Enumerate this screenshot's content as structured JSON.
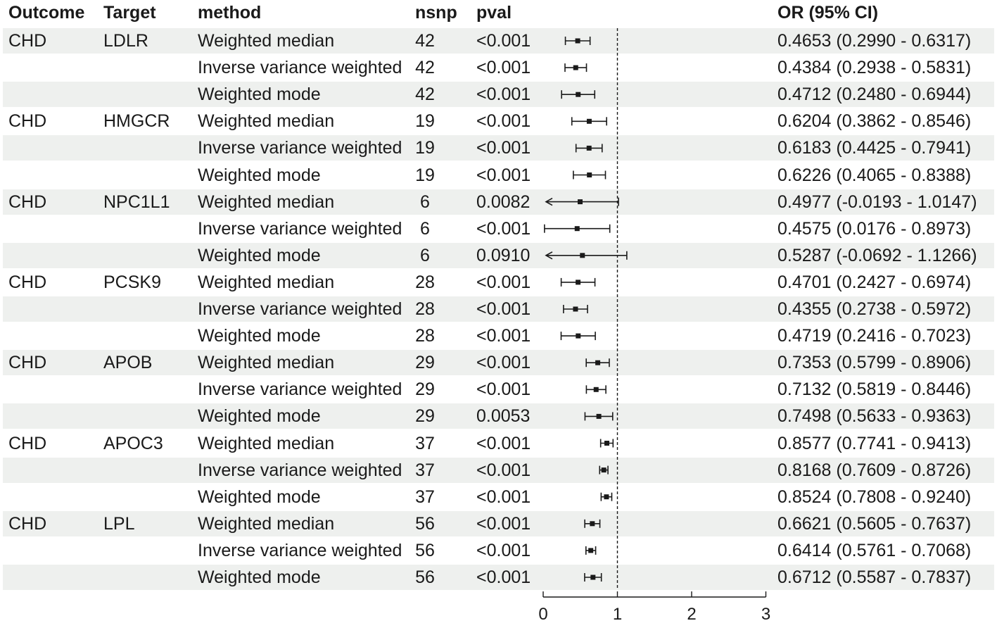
{
  "headers": {
    "outcome": "Outcome",
    "target": "Target",
    "method": "method",
    "nsnp": "nsnp",
    "pval": "pval",
    "or": "OR (95% CI)"
  },
  "colors": {
    "band": "#eef0ee",
    "marker": "#1a1a1a",
    "reference_line": "#1a1a1a"
  },
  "chart_data": {
    "type": "forest",
    "title": "",
    "xlabel": "",
    "xlim": [
      0,
      3
    ],
    "x_ticks": [
      "0",
      "1",
      "2",
      "3"
    ],
    "reference_value": 1,
    "grid": false,
    "rows": [
      {
        "outcome": "CHD",
        "target": "LDLR",
        "method": "Weighted median",
        "nsnp": "42",
        "pval": "<0.001",
        "or": 0.4653,
        "lo": 0.299,
        "hi": 0.6317,
        "label": "0.4653 (0.2990 - 0.6317)"
      },
      {
        "outcome": "",
        "target": "",
        "method": "Inverse variance weighted",
        "nsnp": "42",
        "pval": "<0.001",
        "or": 0.4384,
        "lo": 0.2938,
        "hi": 0.5831,
        "label": "0.4384 (0.2938 - 0.5831)"
      },
      {
        "outcome": "",
        "target": "",
        "method": "Weighted mode",
        "nsnp": "42",
        "pval": "<0.001",
        "or": 0.4712,
        "lo": 0.248,
        "hi": 0.6944,
        "label": "0.4712 (0.2480 - 0.6944)"
      },
      {
        "outcome": "CHD",
        "target": "HMGCR",
        "method": "Weighted median",
        "nsnp": "19",
        "pval": "<0.001",
        "or": 0.6204,
        "lo": 0.3862,
        "hi": 0.8546,
        "label": "0.6204 (0.3862 - 0.8546)"
      },
      {
        "outcome": "",
        "target": "",
        "method": "Inverse variance weighted",
        "nsnp": "19",
        "pval": "<0.001",
        "or": 0.6183,
        "lo": 0.4425,
        "hi": 0.7941,
        "label": "0.6183 (0.4425 - 0.7941)"
      },
      {
        "outcome": "",
        "target": "",
        "method": "Weighted mode",
        "nsnp": "19",
        "pval": "<0.001",
        "or": 0.6226,
        "lo": 0.4065,
        "hi": 0.8388,
        "label": "0.6226 (0.4065 - 0.8388)"
      },
      {
        "outcome": "CHD",
        "target": "NPC1L1",
        "method": "Weighted median",
        "nsnp": "6",
        "pval": "0.0082",
        "or": 0.4977,
        "lo": -0.0193,
        "hi": 1.0147,
        "label": "0.4977 (-0.0193 - 1.0147)"
      },
      {
        "outcome": "",
        "target": "",
        "method": "Inverse variance weighted",
        "nsnp": "6",
        "pval": "<0.001",
        "or": 0.4575,
        "lo": 0.0176,
        "hi": 0.8973,
        "label": "0.4575 (0.0176 - 0.8973)"
      },
      {
        "outcome": "",
        "target": "",
        "method": "Weighted mode",
        "nsnp": "6",
        "pval": "0.0910",
        "or": 0.5287,
        "lo": -0.0692,
        "hi": 1.1266,
        "label": "0.5287 (-0.0692 - 1.1266)"
      },
      {
        "outcome": "CHD",
        "target": "PCSK9",
        "method": "Weighted median",
        "nsnp": "28",
        "pval": "<0.001",
        "or": 0.4701,
        "lo": 0.2427,
        "hi": 0.6974,
        "label": "0.4701 (0.2427 - 0.6974)"
      },
      {
        "outcome": "",
        "target": "",
        "method": "Inverse variance weighted",
        "nsnp": "28",
        "pval": "<0.001",
        "or": 0.4355,
        "lo": 0.2738,
        "hi": 0.5972,
        "label": "0.4355 (0.2738 - 0.5972)"
      },
      {
        "outcome": "",
        "target": "",
        "method": "Weighted mode",
        "nsnp": "28",
        "pval": "<0.001",
        "or": 0.4719,
        "lo": 0.2416,
        "hi": 0.7023,
        "label": "0.4719 (0.2416 - 0.7023)"
      },
      {
        "outcome": "CHD",
        "target": "APOB",
        "method": "Weighted median",
        "nsnp": "29",
        "pval": "<0.001",
        "or": 0.7353,
        "lo": 0.5799,
        "hi": 0.8906,
        "label": "0.7353 (0.5799 - 0.8906)"
      },
      {
        "outcome": "",
        "target": "",
        "method": "Inverse variance weighted",
        "nsnp": "29",
        "pval": "<0.001",
        "or": 0.7132,
        "lo": 0.5819,
        "hi": 0.8446,
        "label": "0.7132 (0.5819 - 0.8446)"
      },
      {
        "outcome": "",
        "target": "",
        "method": "Weighted mode",
        "nsnp": "29",
        "pval": "0.0053",
        "or": 0.7498,
        "lo": 0.5633,
        "hi": 0.9363,
        "label": "0.7498 (0.5633 - 0.9363)"
      },
      {
        "outcome": "CHD",
        "target": "APOC3",
        "method": "Weighted median",
        "nsnp": "37",
        "pval": "<0.001",
        "or": 0.8577,
        "lo": 0.7741,
        "hi": 0.9413,
        "label": "0.8577 (0.7741 - 0.9413)"
      },
      {
        "outcome": "",
        "target": "",
        "method": "Inverse variance weighted",
        "nsnp": "37",
        "pval": "<0.001",
        "or": 0.8168,
        "lo": 0.7609,
        "hi": 0.8726,
        "label": "0.8168 (0.7609 - 0.8726)"
      },
      {
        "outcome": "",
        "target": "",
        "method": "Weighted mode",
        "nsnp": "37",
        "pval": "<0.001",
        "or": 0.8524,
        "lo": 0.7808,
        "hi": 0.924,
        "label": "0.8524 (0.7808 - 0.9240)"
      },
      {
        "outcome": "CHD",
        "target": "LPL",
        "method": "Weighted median",
        "nsnp": "56",
        "pval": "<0.001",
        "or": 0.6621,
        "lo": 0.5605,
        "hi": 0.7637,
        "label": "0.6621 (0.5605 - 0.7637)"
      },
      {
        "outcome": "",
        "target": "",
        "method": "Inverse variance weighted",
        "nsnp": "56",
        "pval": "<0.001",
        "or": 0.6414,
        "lo": 0.5761,
        "hi": 0.7068,
        "label": "0.6414 (0.5761 - 0.7068)"
      },
      {
        "outcome": "",
        "target": "",
        "method": "Weighted mode",
        "nsnp": "56",
        "pval": "<0.001",
        "or": 0.6712,
        "lo": 0.5587,
        "hi": 0.7837,
        "label": "0.6712 (0.5587 - 0.7837)"
      }
    ]
  }
}
